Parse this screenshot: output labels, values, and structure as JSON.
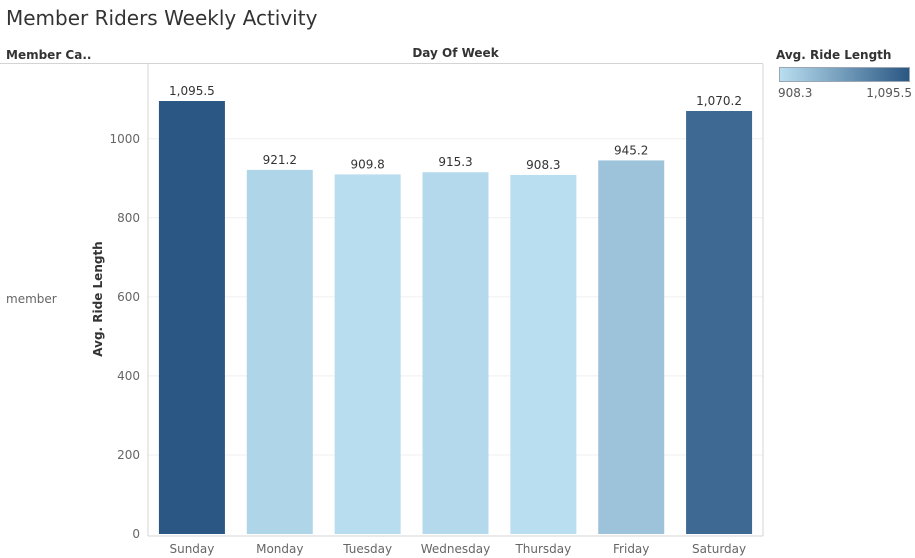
{
  "page": {
    "title": "Member Riders Weekly Activity",
    "row_header": "Member Ca..",
    "column_header": "Day Of Week",
    "row_label": "member"
  },
  "legend": {
    "title": "Avg. Ride Length",
    "min_label": "908.3",
    "max_label": "1,095.5",
    "color_low": "#b9def0",
    "color_high": "#2a5783"
  },
  "chart_data": {
    "type": "bar",
    "categories": [
      "Sunday",
      "Monday",
      "Tuesday",
      "Wednesday",
      "Thursday",
      "Friday",
      "Saturday"
    ],
    "values": [
      1095.5,
      921.2,
      909.8,
      915.3,
      908.3,
      945.2,
      1070.2
    ],
    "value_labels": [
      "1,095.5",
      "921.2",
      "909.8",
      "915.3",
      "908.3",
      "945.2",
      "1,070.2"
    ],
    "title": "Member Riders Weekly Activity",
    "xlabel": "Day Of Week",
    "ylabel": "Avg. Ride Length",
    "ylim": [
      0,
      1170
    ],
    "yticks": [
      0,
      200,
      400,
      600,
      800,
      1000
    ],
    "grid": true,
    "color_encoding": "Avg. Ride Length",
    "colors": {
      "low": "#b9def0",
      "high": "#2a5783",
      "axis": "#d4d4d4",
      "grid": "#efefef",
      "tick_text": "#666666"
    }
  }
}
